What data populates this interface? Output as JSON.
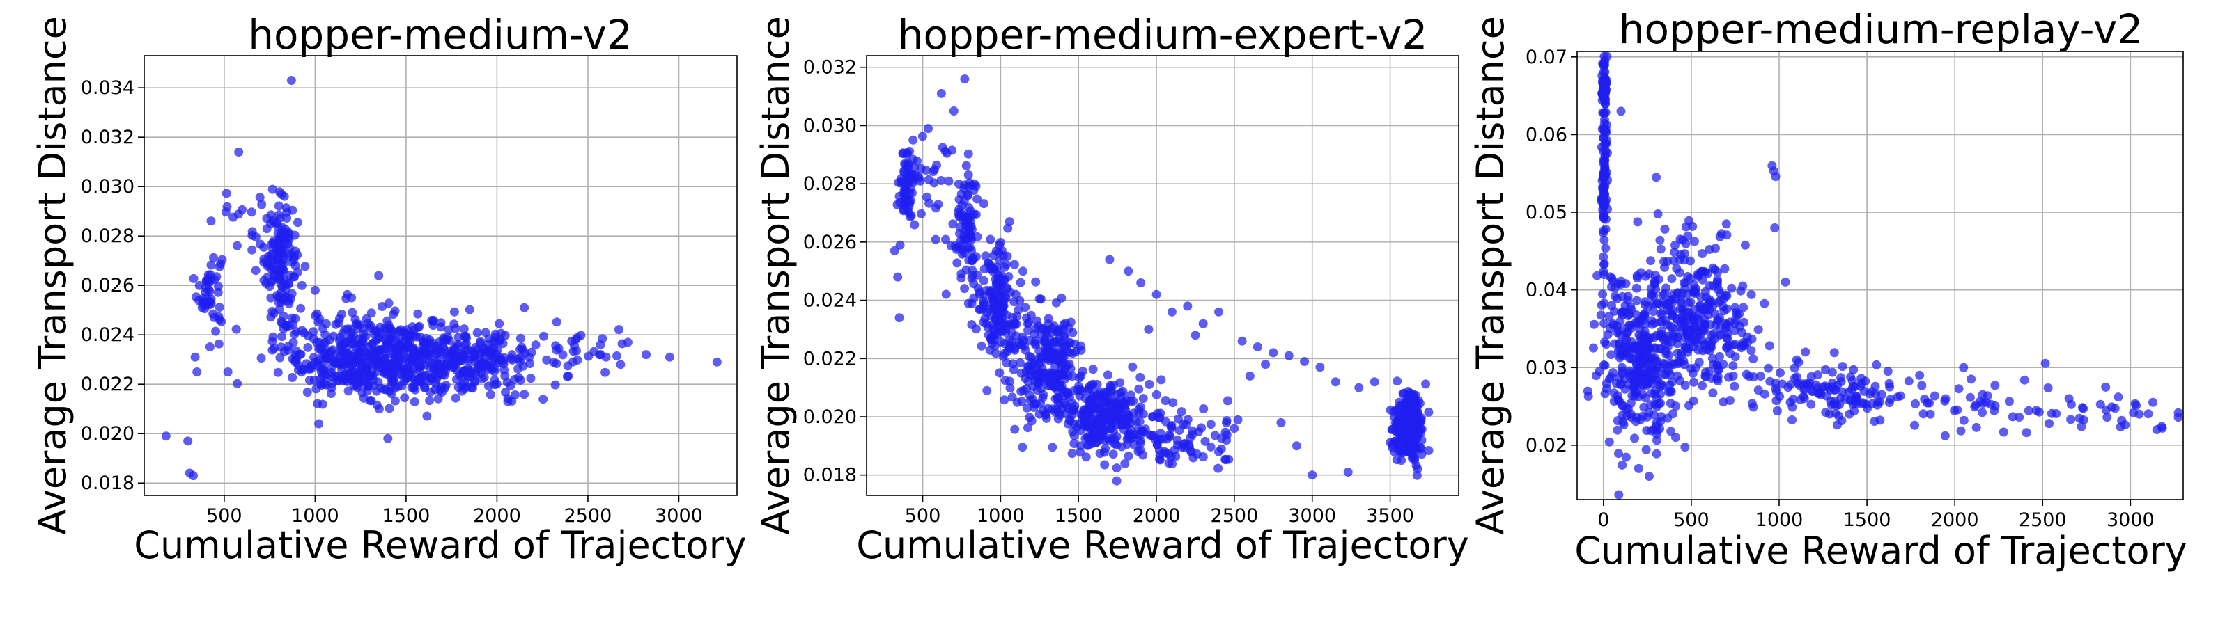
{
  "figure": {
    "background": "#ffffff",
    "point_color": "#1f1ff0"
  },
  "chart_data": [
    {
      "type": "scatter",
      "title": "hopper-medium-v2",
      "xlabel": "Cumulative Reward of Trajectory",
      "ylabel": "Average Transport Distance",
      "xlim": [
        60,
        3320
      ],
      "ylim": [
        0.0175,
        0.0353
      ],
      "xticks": [
        500,
        1000,
        1500,
        2000,
        2500,
        3000
      ],
      "yticks": [
        0.018,
        0.02,
        0.022,
        0.024,
        0.026,
        0.028,
        0.03,
        0.032,
        0.034
      ],
      "xtick_labels": [
        "500",
        "1000",
        "1500",
        "2000",
        "2500",
        "3000"
      ],
      "ytick_labels": [
        "0.018",
        "0.020",
        "0.022",
        "0.024",
        "0.026",
        "0.028",
        "0.030",
        "0.032",
        "0.034"
      ],
      "grid": true,
      "clusters": [
        {
          "n": 45,
          "cx": 420,
          "cy": 0.0258,
          "sx": 35,
          "sy": 0.0008
        },
        {
          "n": 140,
          "cx": 810,
          "cy": 0.027,
          "sx": 45,
          "sy": 0.0012
        },
        {
          "n": 520,
          "cx": 1320,
          "cy": 0.0231,
          "sx": 260,
          "sy": 0.00085
        },
        {
          "n": 220,
          "cx": 1850,
          "cy": 0.0228,
          "sx": 180,
          "sy": 0.0007
        },
        {
          "n": 35,
          "cx": 2400,
          "cy": 0.0232,
          "sx": 180,
          "sy": 0.00055
        },
        {
          "n": 20,
          "cx": 640,
          "cy": 0.0285,
          "sx": 90,
          "sy": 0.001
        }
      ],
      "points": [
        {
          "x": 870,
          "y": 0.0343
        },
        {
          "x": 580,
          "y": 0.0314
        },
        {
          "x": 180,
          "y": 0.0199
        },
        {
          "x": 300,
          "y": 0.0197
        },
        {
          "x": 310,
          "y": 0.0184
        },
        {
          "x": 330,
          "y": 0.0183
        },
        {
          "x": 340,
          "y": 0.0231
        },
        {
          "x": 350,
          "y": 0.0225
        },
        {
          "x": 3210,
          "y": 0.0229
        },
        {
          "x": 2950,
          "y": 0.0231
        },
        {
          "x": 2820,
          "y": 0.0232
        },
        {
          "x": 2720,
          "y": 0.0237
        },
        {
          "x": 2680,
          "y": 0.0228
        },
        {
          "x": 2600,
          "y": 0.0231
        },
        {
          "x": 2150,
          "y": 0.0251
        },
        {
          "x": 1200,
          "y": 0.0255
        },
        {
          "x": 1350,
          "y": 0.0264
        },
        {
          "x": 1000,
          "y": 0.0258
        },
        {
          "x": 1400,
          "y": 0.0198
        },
        {
          "x": 1020,
          "y": 0.0204
        },
        {
          "x": 520,
          "y": 0.0225
        }
      ]
    },
    {
      "type": "scatter",
      "title": "hopper-medium-expert-v2",
      "xlabel": "Cumulative Reward of Trajectory",
      "ylabel": "Average Transport Distance",
      "xlim": [
        140,
        3940
      ],
      "ylim": [
        0.0173,
        0.0324
      ],
      "xticks": [
        500,
        1000,
        1500,
        2000,
        2500,
        3000,
        3500
      ],
      "yticks": [
        0.018,
        0.02,
        0.022,
        0.024,
        0.026,
        0.028,
        0.03,
        0.032
      ],
      "xtick_labels": [
        "500",
        "1000",
        "1500",
        "2000",
        "2500",
        "3000",
        "3500"
      ],
      "ytick_labels": [
        "0.018",
        "0.020",
        "0.022",
        "0.024",
        "0.026",
        "0.028",
        "0.030",
        "0.032"
      ],
      "grid": true,
      "clusters": [
        {
          "n": 60,
          "cx": 400,
          "cy": 0.028,
          "sx": 25,
          "sy": 0.0007
        },
        {
          "n": 90,
          "cx": 780,
          "cy": 0.0265,
          "sx": 40,
          "sy": 0.001
        },
        {
          "n": 160,
          "cx": 970,
          "cy": 0.024,
          "sx": 70,
          "sy": 0.001
        },
        {
          "n": 260,
          "cx": 1280,
          "cy": 0.0218,
          "sx": 120,
          "sy": 0.0009
        },
        {
          "n": 260,
          "cx": 1650,
          "cy": 0.02,
          "sx": 140,
          "sy": 0.0006
        },
        {
          "n": 90,
          "cx": 2150,
          "cy": 0.0192,
          "sx": 200,
          "sy": 0.0006
        },
        {
          "n": 230,
          "cx": 3620,
          "cy": 0.0196,
          "sx": 55,
          "sy": 0.0006
        },
        {
          "n": 30,
          "cx": 600,
          "cy": 0.0283,
          "sx": 70,
          "sy": 0.001
        }
      ],
      "points": [
        {
          "x": 770,
          "y": 0.0316
        },
        {
          "x": 620,
          "y": 0.0311
        },
        {
          "x": 700,
          "y": 0.0305
        },
        {
          "x": 320,
          "y": 0.0257
        },
        {
          "x": 340,
          "y": 0.0248
        },
        {
          "x": 350,
          "y": 0.0234
        },
        {
          "x": 1700,
          "y": 0.0254
        },
        {
          "x": 1820,
          "y": 0.025
        },
        {
          "x": 1900,
          "y": 0.0246
        },
        {
          "x": 2000,
          "y": 0.0242
        },
        {
          "x": 2100,
          "y": 0.0236
        },
        {
          "x": 2200,
          "y": 0.0238
        },
        {
          "x": 2300,
          "y": 0.0232
        },
        {
          "x": 2400,
          "y": 0.0236
        },
        {
          "x": 2550,
          "y": 0.0226
        },
        {
          "x": 2650,
          "y": 0.0224
        },
        {
          "x": 2750,
          "y": 0.0222
        },
        {
          "x": 2850,
          "y": 0.0221
        },
        {
          "x": 2950,
          "y": 0.0219
        },
        {
          "x": 3050,
          "y": 0.0217
        },
        {
          "x": 3150,
          "y": 0.0212
        },
        {
          "x": 3300,
          "y": 0.021
        },
        {
          "x": 2600,
          "y": 0.0214
        },
        {
          "x": 2700,
          "y": 0.0218
        },
        {
          "x": 3000,
          "y": 0.018
        },
        {
          "x": 3230,
          "y": 0.0181
        },
        {
          "x": 2400,
          "y": 0.0188
        },
        {
          "x": 2900,
          "y": 0.019
        },
        {
          "x": 2800,
          "y": 0.0198
        },
        {
          "x": 2500,
          "y": 0.0196
        },
        {
          "x": 3400,
          "y": 0.0212
        },
        {
          "x": 2250,
          "y": 0.0228
        },
        {
          "x": 1950,
          "y": 0.023
        }
      ]
    },
    {
      "type": "scatter",
      "title": "hopper-medium-replay-v2",
      "xlabel": "Cumulative Reward of Trajectory",
      "ylabel": "Average Transport Distance",
      "xlim": [
        -150,
        3300
      ],
      "ylim": [
        0.013,
        0.0707
      ],
      "xticks": [
        0,
        500,
        1000,
        1500,
        2000,
        2500,
        3000
      ],
      "yticks": [
        0.02,
        0.03,
        0.04,
        0.05,
        0.06,
        0.07
      ],
      "xtick_labels": [
        "0",
        "500",
        "1000",
        "1500",
        "2000",
        "2500",
        "3000"
      ],
      "ytick_labels": [
        "0.02",
        "0.03",
        "0.04",
        "0.05",
        "0.06",
        "0.07"
      ],
      "grid": true,
      "clusters": [
        {
          "n": 110,
          "cx": 5,
          "cy": 0.056,
          "sx": 8,
          "sy": 0.0075
        },
        {
          "n": 40,
          "cx": 5,
          "cy": 0.066,
          "sx": 6,
          "sy": 0.0012
        },
        {
          "n": 340,
          "cx": 200,
          "cy": 0.031,
          "sx": 110,
          "sy": 0.0055
        },
        {
          "n": 220,
          "cx": 480,
          "cy": 0.037,
          "sx": 130,
          "sy": 0.005
        },
        {
          "n": 90,
          "cx": 700,
          "cy": 0.034,
          "sx": 150,
          "sy": 0.005
        },
        {
          "n": 120,
          "cx": 1300,
          "cy": 0.027,
          "sx": 230,
          "sy": 0.0018
        },
        {
          "n": 45,
          "cx": 2100,
          "cy": 0.0253,
          "sx": 300,
          "sy": 0.0016
        },
        {
          "n": 30,
          "cx": 2800,
          "cy": 0.024,
          "sx": 250,
          "sy": 0.0014
        }
      ],
      "points": [
        {
          "x": 960,
          "y": 0.056
        },
        {
          "x": 970,
          "y": 0.0553
        },
        {
          "x": 980,
          "y": 0.0546
        },
        {
          "x": 975,
          "y": 0.048
        },
        {
          "x": 3150,
          "y": 0.022
        },
        {
          "x": 3050,
          "y": 0.024
        },
        {
          "x": 2950,
          "y": 0.0232
        },
        {
          "x": 2650,
          "y": 0.026
        },
        {
          "x": 2050,
          "y": 0.03
        },
        {
          "x": 1800,
          "y": 0.029
        },
        {
          "x": 1150,
          "y": 0.032
        },
        {
          "x": 1100,
          "y": 0.031
        },
        {
          "x": 300,
          "y": 0.0545
        },
        {
          "x": 100,
          "y": 0.063
        },
        {
          "x": 200,
          "y": 0.017
        },
        {
          "x": 260,
          "y": 0.016
        },
        {
          "x": 700,
          "y": 0.0485
        }
      ]
    }
  ]
}
